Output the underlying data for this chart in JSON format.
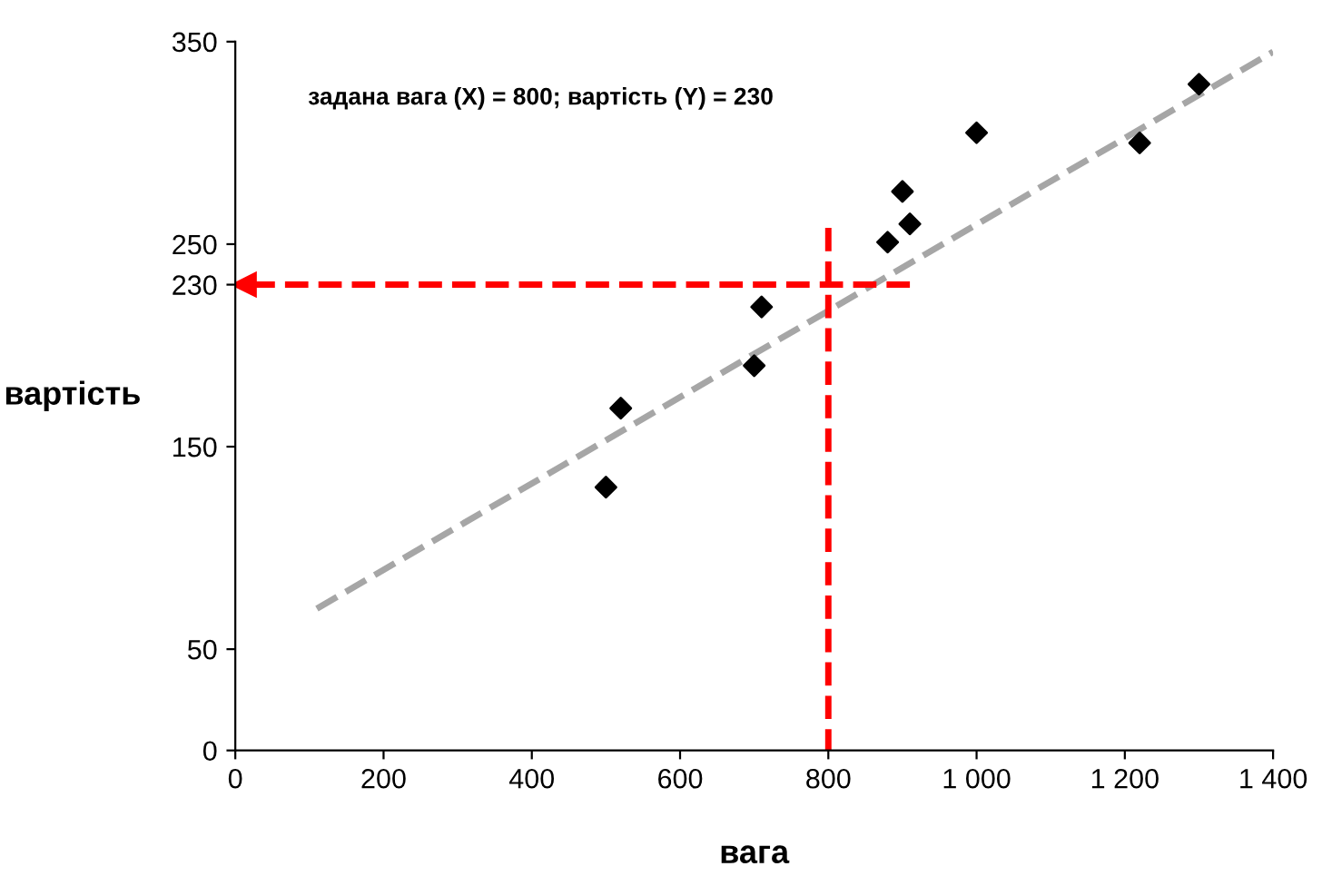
{
  "chart_data": {
    "type": "scatter",
    "xlabel": "вага",
    "ylabel": "вартість",
    "annotations": [
      "задана вага (X) = 800; вартість (Y) = 230"
    ],
    "xlim": [
      0,
      1400
    ],
    "ylim": [
      0,
      350
    ],
    "xticks": [
      0,
      200,
      400,
      600,
      800,
      {
        "value": 1000,
        "label": "1 000"
      },
      {
        "value": 1200,
        "label": "1 200"
      },
      {
        "value": 1400,
        "label": "1 400"
      }
    ],
    "yticks": [
      0,
      50,
      150,
      230,
      250,
      350
    ],
    "grid": false,
    "legend": false,
    "series": [
      {
        "color": "#000000",
        "marker": "diamond",
        "x": [
          500,
          520,
          700,
          710,
          880,
          900,
          910,
          1000,
          1220,
          1300
        ],
        "values": [
          130,
          169,
          190,
          219,
          251,
          276,
          260,
          305,
          300,
          329
        ]
      },
      {
        "type": "line",
        "color": "#a6a6a6",
        "line_style": "dashed",
        "marker": "none",
        "x": [
          110,
          1400
        ],
        "values": [
          70,
          345
        ]
      },
      {
        "type": "line",
        "color": "#ff0000",
        "line_style": "dashed",
        "marker": "none",
        "x": [
          800,
          800
        ],
        "values": [
          258,
          0
        ]
      },
      {
        "type": "line",
        "color": "#ff0000",
        "line_style": "dashed",
        "marker": "triangle",
        "x": [
          910,
          12
        ],
        "values": [
          230,
          230
        ]
      }
    ]
  }
}
